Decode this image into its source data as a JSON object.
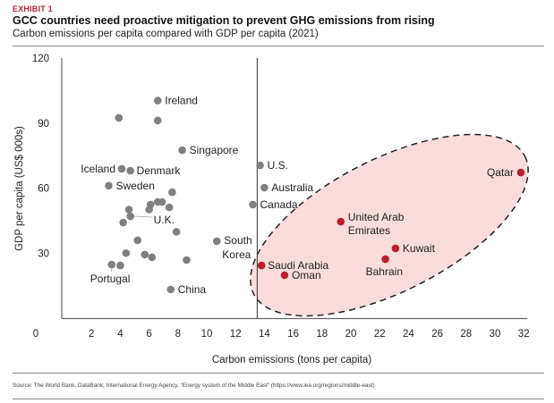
{
  "header": {
    "exhibit": "EXHIBIT 1",
    "title": "GCC countries need proactive mitigation to prevent GHG emissions from rising",
    "subtitle": "Carbon emissions per capita compared with GDP per capita (2021)"
  },
  "footer": {
    "source": "Source: The World Bank, DataBank; International Energy Agency, “Energy system of the Middle East” (https://www.iea.org/regions/middle-east)"
  },
  "colors": {
    "exhibit": "#b3253a",
    "other_point": "#808080",
    "gcc_point": "#b81f2a",
    "highlight_fill": "#fbdcdc",
    "axis": "#666666"
  },
  "chart_data": {
    "type": "scatter",
    "title": "GCC countries need proactive mitigation to prevent GHG emissions from rising",
    "subtitle": "Carbon emissions per capita compared with GDP per capita (2021)",
    "xlabel": "Carbon emissions (tons per capita)",
    "ylabel": "GDP per capita (US$ 000s)",
    "xlim": [
      0,
      32
    ],
    "ylim": [
      0,
      120
    ],
    "xticks": [
      "0",
      "2",
      "4",
      "6",
      "8",
      "10",
      "12",
      "14",
      "16",
      "18",
      "20",
      "22",
      "24",
      "26",
      "28",
      "30",
      "32"
    ],
    "yticks": [
      "30",
      "60",
      "90",
      "120"
    ],
    "grid": false,
    "reference_line_x": 13.5,
    "highlight": "GCC countries (dashed ellipse)",
    "series": [
      {
        "name": "Other countries",
        "points": [
          {
            "label": "Ireland",
            "x": 6.6,
            "y": 100.4
          },
          {
            "label": "",
            "x": 3.9,
            "y": 92.4
          },
          {
            "label": "",
            "x": 6.6,
            "y": 91.2
          },
          {
            "label": "Singapore",
            "x": 8.3,
            "y": 77.5
          },
          {
            "label": "Iceland",
            "x": 4.1,
            "y": 68.9
          },
          {
            "label": "Denmark",
            "x": 4.7,
            "y": 68.0
          },
          {
            "label": "Sweden",
            "x": 3.2,
            "y": 61.1
          },
          {
            "label": "",
            "x": 7.6,
            "y": 58.1
          },
          {
            "label": "",
            "x": 6.9,
            "y": 53.6
          },
          {
            "label": "",
            "x": 6.6,
            "y": 53.6
          },
          {
            "label": "",
            "x": 6.1,
            "y": 52.4
          },
          {
            "label": "",
            "x": 6.0,
            "y": 50.1
          },
          {
            "label": "",
            "x": 7.4,
            "y": 51.1
          },
          {
            "label": "",
            "x": 4.6,
            "y": 50.1
          },
          {
            "label": "U.K.",
            "x": 4.7,
            "y": 47.0
          },
          {
            "label": "",
            "x": 4.2,
            "y": 44.1
          },
          {
            "label": "",
            "x": 7.9,
            "y": 39.8
          },
          {
            "label": "",
            "x": 5.2,
            "y": 35.9
          },
          {
            "label": "",
            "x": 4.4,
            "y": 30.0
          },
          {
            "label": "",
            "x": 5.7,
            "y": 29.3
          },
          {
            "label": "",
            "x": 6.2,
            "y": 28.1
          },
          {
            "label": "",
            "x": 8.6,
            "y": 26.8
          },
          {
            "label": "Portugal",
            "x": 3.4,
            "y": 24.7
          },
          {
            "label": "",
            "x": 4.0,
            "y": 24.3
          },
          {
            "label": "China",
            "x": 7.5,
            "y": 13.2
          },
          {
            "label": "South Korea",
            "x": 10.7,
            "y": 35.5
          },
          {
            "label": "U.S.",
            "x": 13.7,
            "y": 70.5
          },
          {
            "label": "Australia",
            "x": 14.0,
            "y": 60.2
          },
          {
            "label": "Canada",
            "x": 13.2,
            "y": 52.4
          }
        ]
      },
      {
        "name": "GCC countries",
        "points": [
          {
            "label": "Saudi Arabia",
            "x": 13.8,
            "y": 24.3
          },
          {
            "label": "Oman",
            "x": 15.4,
            "y": 19.8
          },
          {
            "label": "United Arab Emirates",
            "x": 19.3,
            "y": 44.5
          },
          {
            "label": "Kuwait",
            "x": 23.1,
            "y": 32.2
          },
          {
            "label": "Bahrain",
            "x": 22.4,
            "y": 27.2
          },
          {
            "label": "Qatar",
            "x": 31.8,
            "y": 67.2
          }
        ]
      }
    ]
  }
}
